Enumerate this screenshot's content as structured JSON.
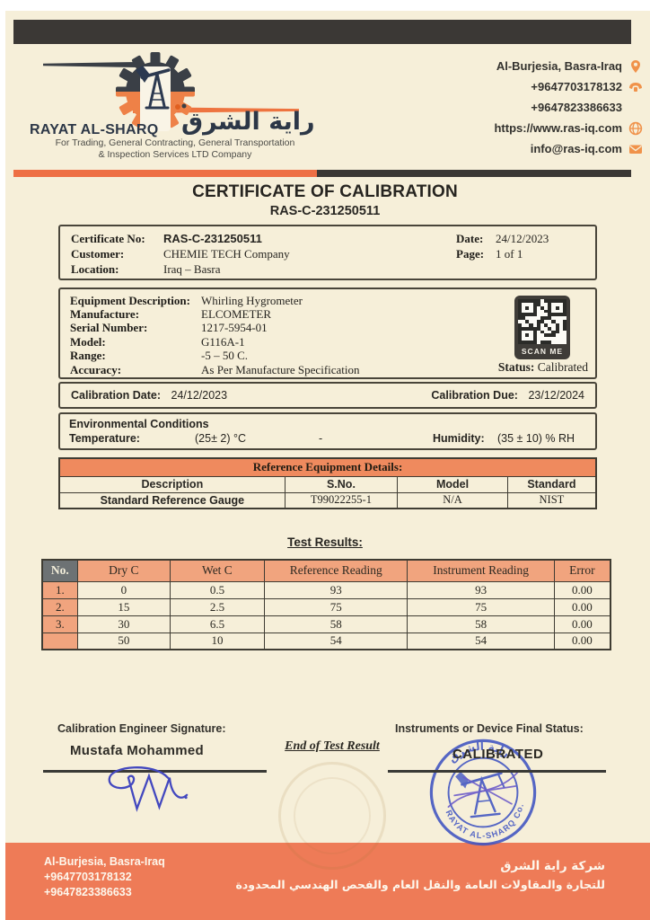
{
  "colors": {
    "paper": "#f6efd9",
    "accent_orange": "#ee6f44",
    "footer_orange": "#ee7b57",
    "bar_dark": "#3b3835",
    "table_salmon": "#f1a47e",
    "table_no_header_gray": "#6d7274",
    "stamp_blue": "#3f54c2",
    "logo_navy": "#2c3747"
  },
  "header": {
    "company_en": "RAYAT AL-SHARQ",
    "company_ar": "راية الشرق",
    "tagline1": "For Trading, General Contracting, General Transportation",
    "tagline2": "& Inspection Services LTD Company",
    "contacts": [
      {
        "text": "Al-Burjesia, Basra-Iraq",
        "icon": "location-pin"
      },
      {
        "text": "+9647703178132",
        "icon": "phone"
      },
      {
        "text": "+9647823386633",
        "icon": "none"
      },
      {
        "text": "https://www.ras-iq.com",
        "icon": "globe"
      },
      {
        "text": "info@ras-iq.com",
        "icon": "mail"
      }
    ]
  },
  "title": {
    "main": "CERTIFICATE OF CALIBRATION",
    "number": "RAS-C-231250511"
  },
  "cert": {
    "no_label": "Certificate No:",
    "no": "RAS-C-231250511",
    "customer_label": "Customer:",
    "customer": "CHEMIE TECH Company",
    "location_label": "Location:",
    "location": "Iraq – Basra",
    "date_label": "Date:",
    "date": "24/12/2023",
    "page_label": "Page:",
    "page": "1 of 1"
  },
  "equip": {
    "rows": [
      {
        "label": "Equipment Description:",
        "value": "Whirling Hygrometer"
      },
      {
        "label": "Manufacture:",
        "value": "ELCOMETER"
      },
      {
        "label": "Serial Number:",
        "value": "1217-5954-01"
      },
      {
        "label": "Model:",
        "value": "G116A-1"
      },
      {
        "label": "Range:",
        "value": "-5 – 50 C."
      },
      {
        "label": "Accuracy:",
        "value": "As Per Manufacture Specification"
      }
    ],
    "qr_label": "SCAN ME",
    "status_label": "Status:",
    "status": "Calibrated"
  },
  "cal": {
    "date_label": "Calibration Date:",
    "date": "24/12/2023",
    "due_label": "Calibration Due:",
    "due": "23/12/2024"
  },
  "env": {
    "heading": "Environmental Conditions",
    "temp_label": "Temperature:",
    "temp": "(25± 2) °C",
    "dash": "-",
    "hum_label": "Humidity:",
    "hum": "(35 ± 10) % RH"
  },
  "ref": {
    "title": "Reference Equipment Details:",
    "headers": [
      "Description",
      "S.No.",
      "Model",
      "Standard"
    ],
    "rows": [
      [
        "Standard Reference Gauge",
        "T99022255-1",
        "N/A",
        "NIST"
      ]
    ]
  },
  "test": {
    "title": "Test Results:",
    "headers": [
      "No.",
      "Dry C",
      "Wet C",
      "Reference Reading",
      "Instrument Reading",
      "Error"
    ],
    "rows": [
      [
        "1.",
        "0",
        "0.5",
        "93",
        "93",
        "0.00"
      ],
      [
        "2.",
        "15",
        "2.5",
        "75",
        "75",
        "0.00"
      ],
      [
        "3.",
        "30",
        "6.5",
        "58",
        "58",
        "0.00"
      ],
      [
        "",
        "50",
        "10",
        "54",
        "54",
        "0.00"
      ]
    ]
  },
  "sig": {
    "eng_label": "Calibration Engineer Signature:",
    "eng_name": "Mustafa Mohammed",
    "end_note": "End of Test Result",
    "status_label": "Instruments or Device Final Status:",
    "status_value": "CALIBRATED",
    "stamp_ar": "راية الشرق",
    "stamp_en": "RAYAT AL-SHARQ Co."
  },
  "footer": {
    "address": "Al-Burjesia, Basra-Iraq",
    "phone1": "+9647703178132",
    "phone2": "+9647823386633",
    "ar1": "شركة راية الشرق",
    "ar2": "للتجارة والمقاولات العامة والنقل العام والفحص الهندسي المحدودة"
  }
}
